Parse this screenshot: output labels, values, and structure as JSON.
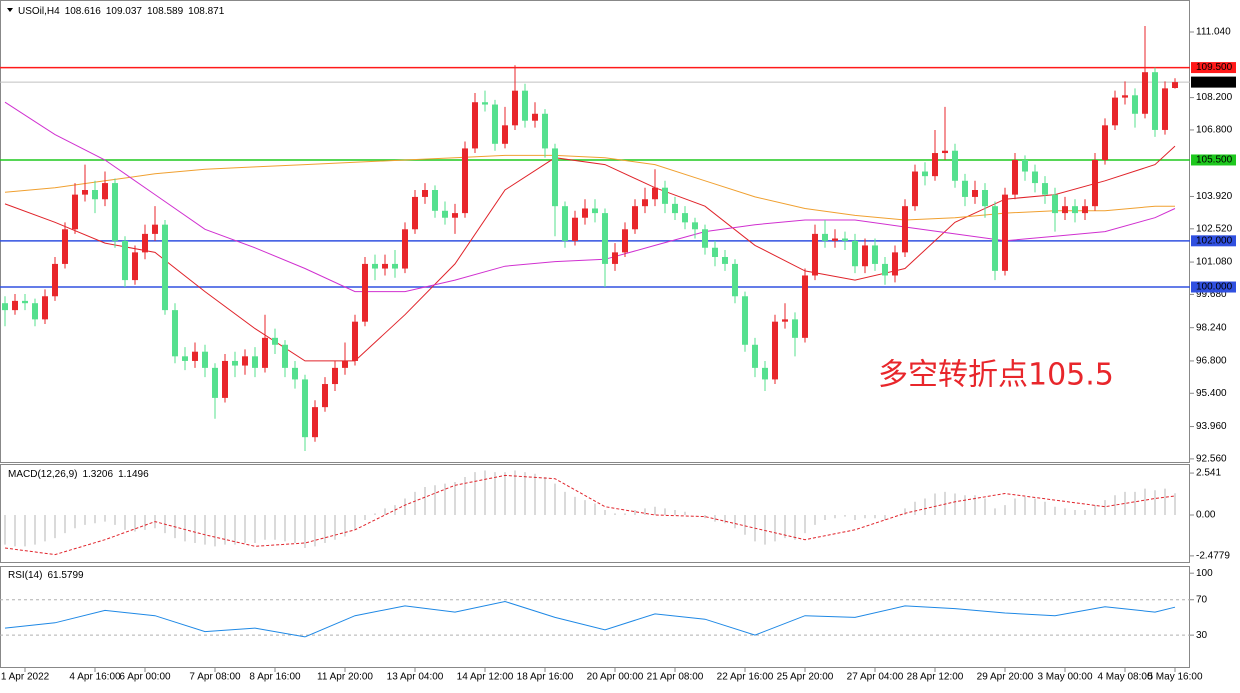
{
  "chart_data": [
    {
      "type": "candlestick",
      "title": "USOil,H4",
      "annotation": "多空转折点105.5",
      "up_color": "#e8262b",
      "down_color": "#55e08e",
      "open": [
        99.3,
        99.0,
        99.4,
        99.3,
        98.6,
        99.6,
        101.0,
        102.5,
        104.0,
        104.2,
        103.8,
        104.5,
        102.0,
        100.3,
        101.5,
        102.3,
        102.7,
        99.0,
        97.0,
        96.8,
        97.2,
        96.5,
        95.2,
        96.8,
        96.6,
        97.0,
        96.5,
        97.8,
        97.5,
        96.5,
        96.0,
        93.5,
        94.8,
        95.8,
        96.5,
        96.8,
        98.5,
        101.0,
        100.8,
        101.0,
        100.8,
        102.5,
        103.9,
        104.2,
        103.3,
        103.0,
        103.2,
        106.0,
        108.0,
        107.9,
        106.2,
        107.0,
        108.5,
        107.2,
        107.5,
        106.0,
        103.5,
        102.0,
        103.0,
        103.4,
        103.2,
        101.0,
        101.5,
        102.5,
        103.5,
        103.8,
        104.3,
        103.6,
        103.2,
        102.8,
        102.5,
        101.7,
        101.3,
        101.0,
        99.6,
        97.5,
        96.5,
        96.0,
        98.5,
        98.6,
        97.8,
        100.5,
        102.3,
        102.0,
        102.1,
        102.0,
        100.9,
        101.8,
        101.0,
        100.5,
        101.5,
        103.5,
        105.0,
        104.8,
        105.8,
        105.9,
        104.6,
        103.9,
        104.2,
        103.5,
        100.7,
        104.0,
        105.5,
        105.0,
        104.5,
        104.0,
        103.2,
        103.5,
        103.2,
        103.5,
        105.5,
        107.0,
        108.2,
        108.3,
        107.5,
        109.3,
        106.8,
        108.616
      ],
      "high": [
        99.6,
        99.7,
        99.7,
        99.5,
        99.9,
        101.3,
        102.8,
        104.5,
        105.3,
        104.6,
        105.0,
        104.7,
        102.2,
        101.8,
        102.7,
        103.5,
        102.9,
        99.3,
        97.4,
        97.6,
        97.5,
        96.7,
        97.1,
        97.2,
        97.3,
        97.4,
        98.8,
        98.2,
        97.7,
        96.8,
        96.2,
        95.1,
        96.1,
        96.8,
        97.6,
        98.8,
        101.3,
        101.4,
        101.4,
        101.6,
        102.8,
        104.2,
        104.5,
        104.4,
        103.7,
        103.6,
        106.3,
        108.4,
        108.5,
        108.1,
        107.8,
        109.6,
        108.8,
        108.0,
        107.7,
        106.2,
        103.7,
        103.3,
        103.8,
        103.8,
        103.4,
        101.9,
        102.8,
        103.8,
        104.3,
        105.1,
        104.6,
        103.9,
        103.5,
        103.0,
        102.7,
        102.0,
        101.6,
        101.2,
        99.8,
        97.8,
        96.8,
        98.8,
        99.3,
        98.9,
        100.8,
        102.7,
        102.9,
        102.5,
        102.4,
        102.3,
        102.1,
        102.1,
        101.3,
        101.8,
        103.8,
        105.3,
        105.4,
        106.8,
        107.8,
        106.2,
        104.9,
        104.6,
        104.5,
        103.7,
        104.3,
        105.8,
        105.7,
        105.3,
        104.8,
        104.3,
        103.9,
        103.8,
        103.8,
        105.8,
        107.3,
        108.5,
        108.9,
        108.6,
        111.3,
        109.5,
        108.9,
        109.037
      ],
      "low": [
        98.3,
        98.8,
        99.0,
        98.3,
        98.4,
        99.4,
        100.8,
        102.3,
        103.7,
        103.2,
        103.5,
        101.7,
        100.0,
        100.1,
        101.2,
        102.0,
        98.8,
        96.7,
        96.4,
        96.5,
        96.1,
        94.3,
        95.0,
        96.1,
        96.2,
        96.1,
        96.3,
        97.1,
        96.1,
        95.6,
        92.9,
        93.3,
        94.6,
        95.5,
        96.2,
        96.6,
        98.3,
        100.3,
        100.5,
        100.4,
        100.6,
        102.3,
        103.6,
        103.0,
        102.7,
        102.3,
        103.0,
        105.8,
        107.6,
        105.9,
        106.0,
        106.8,
        106.9,
        106.9,
        105.6,
        102.2,
        101.7,
        101.8,
        102.7,
        102.8,
        100.0,
        100.7,
        101.3,
        102.3,
        103.2,
        103.5,
        103.2,
        102.9,
        102.5,
        102.1,
        101.4,
        100.9,
        100.7,
        99.3,
        97.2,
        96.1,
        95.5,
        95.8,
        98.2,
        97.0,
        97.6,
        100.3,
        101.7,
        101.7,
        101.6,
        100.6,
        100.6,
        100.7,
        100.1,
        100.2,
        101.3,
        103.3,
        104.4,
        104.6,
        105.5,
        104.3,
        103.5,
        103.6,
        103.0,
        100.3,
        100.5,
        103.8,
        104.6,
        104.1,
        103.6,
        102.4,
        102.9,
        102.8,
        102.9,
        103.3,
        105.3,
        106.8,
        107.9,
        106.9,
        107.3,
        106.5,
        106.6,
        108.589
      ],
      "close": [
        99.0,
        99.4,
        99.3,
        98.6,
        99.6,
        101.0,
        102.5,
        104.0,
        104.2,
        103.8,
        104.5,
        102.0,
        100.3,
        101.5,
        102.3,
        102.7,
        99.0,
        97.0,
        96.8,
        97.2,
        96.5,
        95.2,
        96.8,
        96.6,
        97.0,
        96.5,
        97.8,
        97.5,
        96.5,
        96.0,
        93.5,
        94.8,
        95.8,
        96.5,
        96.8,
        98.5,
        101.0,
        100.8,
        101.0,
        100.8,
        102.5,
        103.9,
        104.2,
        103.3,
        103.0,
        103.2,
        106.0,
        108.0,
        107.9,
        106.2,
        107.0,
        108.5,
        107.2,
        107.5,
        106.0,
        103.5,
        102.0,
        103.0,
        103.4,
        103.2,
        101.0,
        101.5,
        102.5,
        103.5,
        103.8,
        104.3,
        103.6,
        103.2,
        102.8,
        102.5,
        101.7,
        101.3,
        101.0,
        99.6,
        97.5,
        96.5,
        96.0,
        98.5,
        98.6,
        97.8,
        100.5,
        102.3,
        102.0,
        102.1,
        102.0,
        100.9,
        101.8,
        101.0,
        100.5,
        101.5,
        103.5,
        105.0,
        104.8,
        105.8,
        105.9,
        104.6,
        103.9,
        104.2,
        103.5,
        100.7,
        104.0,
        105.5,
        105.0,
        104.5,
        104.0,
        103.2,
        103.5,
        103.2,
        103.5,
        105.5,
        107.0,
        108.2,
        108.3,
        107.5,
        109.3,
        106.8,
        108.6,
        108.871
      ],
      "lines": [
        {
          "color": "#e0232a",
          "x": [
            0,
            5,
            10,
            15,
            20,
            25,
            30,
            35,
            40,
            45,
            50,
            55,
            60,
            65,
            70,
            75,
            80,
            85,
            90,
            95,
            100,
            105,
            110,
            115,
            117
          ],
          "values": [
            103.6,
            102.8,
            101.9,
            101.5,
            99.8,
            98.2,
            96.8,
            96.8,
            98.8,
            101.0,
            104.2,
            105.6,
            105.3,
            104.3,
            103.5,
            101.8,
            100.7,
            100.3,
            100.8,
            102.8,
            103.8,
            104.0,
            104.6,
            105.3,
            106.1
          ]
        },
        {
          "color": "#f0a030",
          "x": [
            0,
            5,
            10,
            15,
            20,
            25,
            30,
            35,
            40,
            45,
            50,
            55,
            60,
            65,
            70,
            75,
            80,
            85,
            90,
            95,
            100,
            105,
            110,
            115,
            117
          ],
          "values": [
            104.1,
            104.3,
            104.6,
            104.9,
            105.1,
            105.2,
            105.3,
            105.4,
            105.5,
            105.6,
            105.7,
            105.7,
            105.6,
            105.3,
            104.6,
            103.9,
            103.4,
            103.1,
            102.9,
            103.0,
            103.2,
            103.3,
            103.3,
            103.5,
            103.5
          ]
        },
        {
          "color": "#d030d0",
          "x": [
            0,
            5,
            10,
            15,
            20,
            25,
            30,
            35,
            40,
            45,
            50,
            55,
            60,
            65,
            70,
            75,
            80,
            85,
            90,
            95,
            100,
            105,
            110,
            115,
            117
          ],
          "values": [
            108.0,
            106.6,
            105.5,
            104.0,
            102.5,
            101.7,
            100.8,
            99.8,
            99.8,
            100.3,
            100.9,
            101.1,
            101.2,
            101.8,
            102.4,
            102.7,
            102.9,
            102.9,
            102.6,
            102.3,
            102.0,
            102.2,
            102.4,
            103.0,
            103.4
          ]
        }
      ],
      "levels": [
        {
          "value": 109.5,
          "label": "109.500",
          "color": "#ff1a1a"
        },
        {
          "value": 105.5,
          "label": "105.500",
          "color": "#1ec81e"
        },
        {
          "value": 102.0,
          "label": "102.000",
          "color": "#3050e0"
        },
        {
          "value": 100.0,
          "label": "100.000",
          "color": "#3050e0"
        }
      ],
      "xlim": [
        -0.5,
        118.5
      ],
      "xticks": [
        {
          "value": 2,
          "label": "1 Apr 2022"
        },
        {
          "value": 9,
          "label": "4 Apr 16:00"
        },
        {
          "value": 14,
          "label": "6 Apr 00:00"
        },
        {
          "value": 21,
          "label": "7 Apr 08:00"
        },
        {
          "value": 27,
          "label": "8 Apr 16:00"
        },
        {
          "value": 34,
          "label": "11 Apr 20:00"
        },
        {
          "value": 41,
          "label": "13 Apr 04:00"
        },
        {
          "value": 48,
          "label": "14 Apr 12:00"
        },
        {
          "value": 54,
          "label": "18 Apr 16:00"
        },
        {
          "value": 61,
          "label": "20 Apr 00:00"
        },
        {
          "value": 67,
          "label": "21 Apr 08:00"
        },
        {
          "value": 74,
          "label": "22 Apr 16:00"
        },
        {
          "value": 80,
          "label": "25 Apr 20:00"
        },
        {
          "value": 87,
          "label": "27 Apr 04:00"
        },
        {
          "value": 93,
          "label": "28 Apr 12:00"
        },
        {
          "value": 100,
          "label": "29 Apr 20:00"
        },
        {
          "value": 106,
          "label": "3 May 00:00"
        },
        {
          "value": 112,
          "label": "4 May 08:00"
        },
        {
          "value": 117,
          "label": "5 May 16:00"
        }
      ],
      "ylim": [
        92.425,
        112.209
      ],
      "yticks": [
        {
          "value": 111.04,
          "label": "111.040"
        },
        {
          "value": 108.2,
          "label": "108.200"
        },
        {
          "value": 106.8,
          "label": "106.800"
        },
        {
          "value": 103.92,
          "label": "103.920"
        },
        {
          "value": 102.52,
          "label": "102.520"
        },
        {
          "value": 101.08,
          "label": "101.080"
        },
        {
          "value": 99.68,
          "label": "99.680"
        },
        {
          "value": 98.24,
          "label": "98.240"
        },
        {
          "value": 96.8,
          "label": "96.800"
        },
        {
          "value": 95.4,
          "label": "95.400"
        },
        {
          "value": 93.96,
          "label": "93.960"
        },
        {
          "value": 92.56,
          "label": "92.560"
        }
      ]
    },
    {
      "type": "macd",
      "title": "MACD(12,26,9)",
      "color": "#b4b4b4",
      "values": [
        -1.8,
        -1.9,
        -1.9,
        -1.8,
        -1.6,
        -1.4,
        -1.1,
        -0.8,
        -0.6,
        -0.5,
        -0.4,
        -0.6,
        -0.9,
        -1.0,
        -0.9,
        -0.8,
        -1.1,
        -1.4,
        -1.6,
        -1.7,
        -1.8,
        -1.9,
        -1.8,
        -1.8,
        -1.7,
        -1.7,
        -1.5,
        -1.5,
        -1.6,
        -1.7,
        -2.0,
        -1.9,
        -1.7,
        -1.5,
        -1.3,
        -0.9,
        -0.3,
        0.1,
        0.4,
        0.6,
        1.0,
        1.4,
        1.7,
        1.8,
        1.9,
        2.0,
        2.3,
        2.6,
        2.7,
        2.6,
        2.6,
        2.7,
        2.6,
        2.5,
        2.3,
        1.9,
        1.4,
        1.1,
        0.9,
        0.7,
        0.3,
        0.1,
        0.1,
        0.3,
        0.4,
        0.5,
        0.4,
        0.3,
        0.2,
        0.0,
        -0.2,
        -0.4,
        -0.5,
        -0.8,
        -1.2,
        -1.6,
        -1.8,
        -1.6,
        -1.4,
        -1.5,
        -1.1,
        -0.6,
        -0.3,
        -0.2,
        -0.1,
        -0.3,
        -0.2,
        -0.2,
        -0.3,
        0.0,
        0.4,
        0.8,
        1.0,
        1.3,
        1.4,
        1.3,
        1.2,
        1.2,
        1.0,
        0.4,
        0.6,
        1.0,
        1.1,
        1.0,
        0.8,
        0.5,
        0.4,
        0.3,
        0.3,
        0.6,
        0.9,
        1.2,
        1.4,
        1.4,
        1.6,
        1.5,
        1.6,
        1.3206
      ],
      "signal": {
        "color": "#e0232a",
        "x": [
          0,
          5,
          10,
          15,
          20,
          25,
          30,
          35,
          40,
          45,
          50,
          55,
          60,
          65,
          70,
          75,
          80,
          85,
          90,
          95,
          100,
          105,
          110,
          115,
          117
        ],
        "values": [
          -2.0,
          -2.4,
          -1.5,
          -0.4,
          -1.2,
          -1.9,
          -1.7,
          -0.9,
          0.6,
          1.8,
          2.4,
          2.2,
          0.5,
          0.0,
          -0.1,
          -0.8,
          -1.5,
          -0.9,
          0.1,
          0.8,
          1.3,
          0.9,
          0.5,
          1.0,
          1.1496
        ]
      },
      "ylim": [
        -2.91,
        3.03
      ],
      "yticks": [
        2.541,
        {
          "value": 0,
          "label": "0.00"
        },
        -2.4779
      ]
    },
    {
      "type": "rsi",
      "title": "RSI(14)",
      "color": "#1e88e5",
      "x": [
        0,
        5,
        10,
        15,
        20,
        25,
        30,
        35,
        40,
        45,
        50,
        55,
        60,
        65,
        70,
        75,
        80,
        85,
        90,
        95,
        100,
        105,
        110,
        115,
        117
      ],
      "values": [
        38,
        44,
        58,
        52,
        34,
        38,
        28,
        52,
        63,
        56,
        68,
        50,
        36,
        54,
        48,
        30,
        52,
        50,
        63,
        60,
        55,
        52,
        62,
        56,
        61.5799
      ],
      "ylim": [
        -6,
        107
      ],
      "yticks": [
        100,
        70,
        30
      ]
    }
  ]
}
